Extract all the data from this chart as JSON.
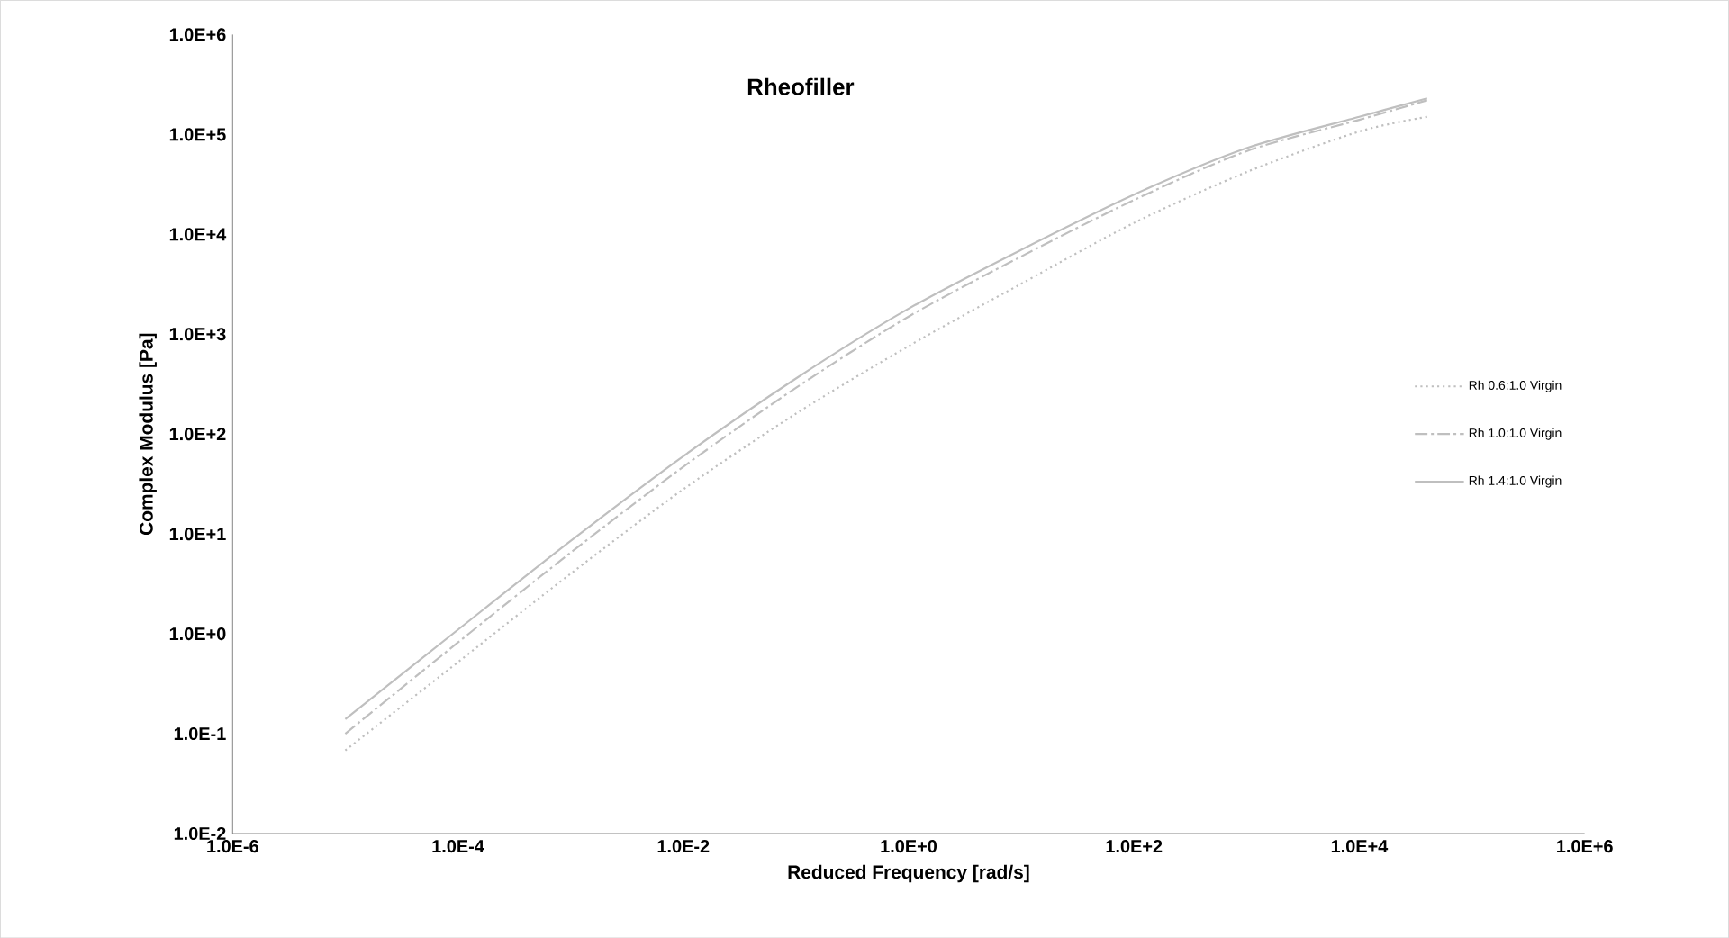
{
  "chart_data": {
    "type": "line",
    "title": "Rheofiller",
    "xlabel": "Reduced Frequency [rad/s]",
    "ylabel": "Complex Modulus [Pa]",
    "log": "xy",
    "grid": false,
    "legend": "right",
    "marker": "none",
    "xlim": [
      1e-06,
      1000000.0
    ],
    "ylim": [
      0.01,
      1000000.0
    ],
    "xticks": [
      {
        "value": 1e-06,
        "label": "1.0E-6"
      },
      {
        "value": 0.0001,
        "label": "1.0E-4"
      },
      {
        "value": 0.01,
        "label": "1.0E-2"
      },
      {
        "value": 1,
        "label": "1.0E+0"
      },
      {
        "value": 100,
        "label": "1.0E+2"
      },
      {
        "value": 10000.0,
        "label": "1.0E+4"
      },
      {
        "value": 1000000.0,
        "label": "1.0E+6"
      }
    ],
    "yticks": [
      {
        "value": 0.01,
        "label": "1.0E-2"
      },
      {
        "value": 0.1,
        "label": "1.0E-1"
      },
      {
        "value": 1,
        "label": "1.0E+0"
      },
      {
        "value": 10,
        "label": "1.0E+1"
      },
      {
        "value": 100,
        "label": "1.0E+2"
      },
      {
        "value": 1000,
        "label": "1.0E+3"
      },
      {
        "value": 10000,
        "label": "1.0E+4"
      },
      {
        "value": 100000,
        "label": "1.0E+5"
      },
      {
        "value": 1000000,
        "label": "1.0E+6"
      }
    ],
    "x": [
      1e-05,
      0.0001,
      0.001,
      0.01,
      0.1,
      1,
      10,
      100,
      1000,
      10000,
      40000
    ],
    "series": [
      {
        "name": "Rh 0.6:1.0 Virgin",
        "color": "#bfbfbf",
        "line_style": "dotted",
        "values": [
          0.068,
          0.52,
          4,
          28,
          160,
          760,
          3200,
          13000,
          42000,
          107000,
          150000
        ]
      },
      {
        "name": "Rh 1.0:1.0 Virgin",
        "color": "#bfbfbf",
        "line_style": "dashed",
        "values": [
          0.1,
          0.82,
          6.5,
          47,
          290,
          1500,
          6000,
          22000,
          68000,
          140000,
          220000
        ]
      },
      {
        "name": "Rh 1.4:1.0 Virgin",
        "color": "#bfbfbf",
        "line_style": "solid",
        "values": [
          0.14,
          1.1,
          8.5,
          60,
          360,
          1800,
          7000,
          25000,
          73000,
          150000,
          230000
        ]
      }
    ]
  }
}
